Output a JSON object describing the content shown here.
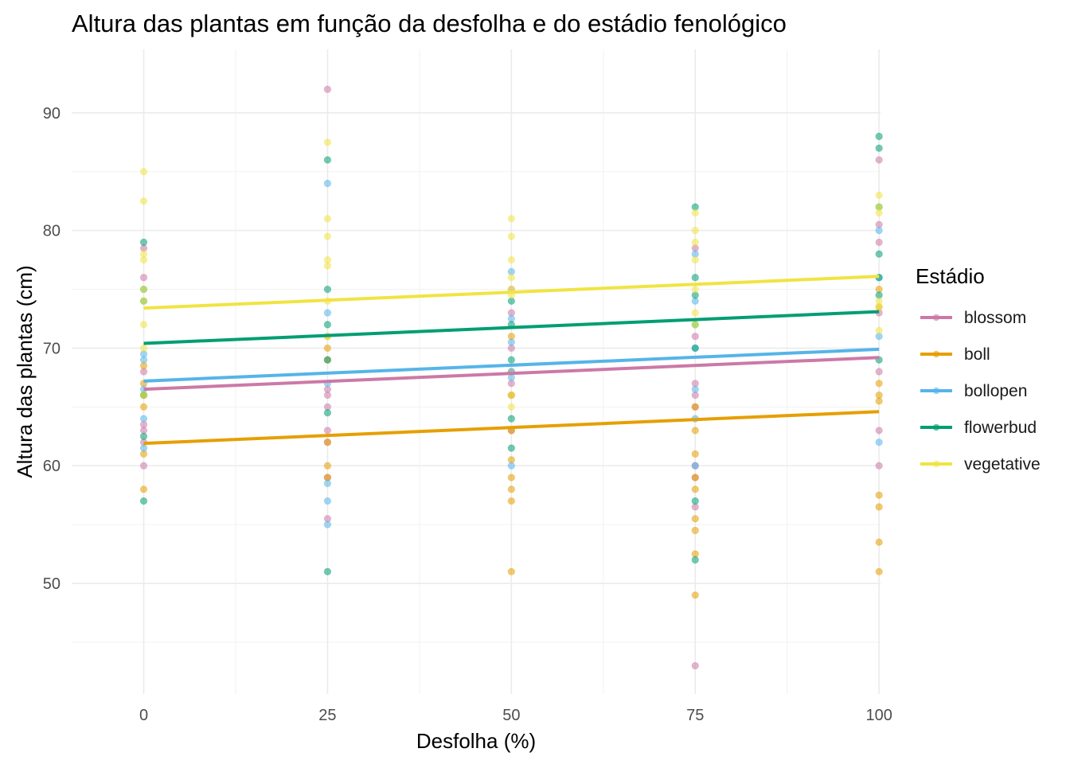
{
  "chart_data": {
    "type": "scatter",
    "title": "Altura das plantas em função da desfolha e do estádio fenológico",
    "xlabel": "Desfolha (%)",
    "ylabel": "Altura das plantas (cm)",
    "xlim": [
      -9.8,
      100.2
    ],
    "ylim": [
      40.6,
      95.4
    ],
    "x_ticks": [
      0,
      25,
      50,
      75,
      100
    ],
    "y_ticks": [
      50,
      60,
      70,
      80,
      90
    ],
    "grid": true,
    "legend_title": "Estádio",
    "legend_position": "right",
    "series": [
      {
        "name": "blossom",
        "color": "#CC79A7",
        "fit": {
          "intercept": 66.5,
          "slope": 0.027
        },
        "points": [
          [
            0,
            78.5
          ],
          [
            0,
            76
          ],
          [
            0,
            68
          ],
          [
            0,
            63.5
          ],
          [
            0,
            63
          ],
          [
            0,
            62
          ],
          [
            0,
            60
          ],
          [
            25,
            92
          ],
          [
            25,
            66.5
          ],
          [
            25,
            66
          ],
          [
            25,
            65
          ],
          [
            25,
            63
          ],
          [
            25,
            62
          ],
          [
            25,
            59
          ],
          [
            25,
            55.5
          ],
          [
            50,
            75
          ],
          [
            50,
            73
          ],
          [
            50,
            70
          ],
          [
            50,
            67
          ],
          [
            50,
            66
          ],
          [
            50,
            63
          ],
          [
            75,
            78.5
          ],
          [
            75,
            71
          ],
          [
            75,
            67
          ],
          [
            75,
            66
          ],
          [
            75,
            65
          ],
          [
            75,
            60
          ],
          [
            75,
            59
          ],
          [
            75,
            56.5
          ],
          [
            75,
            43
          ],
          [
            100,
            86
          ],
          [
            100,
            80.5
          ],
          [
            100,
            79
          ],
          [
            100,
            73
          ],
          [
            100,
            68
          ],
          [
            100,
            63
          ],
          [
            100,
            60
          ]
        ]
      },
      {
        "name": "boll",
        "color": "#E69F00",
        "fit": {
          "intercept": 61.9,
          "slope": 0.027
        },
        "points": [
          [
            0,
            68.5
          ],
          [
            0,
            67
          ],
          [
            0,
            66
          ],
          [
            0,
            65
          ],
          [
            0,
            61
          ],
          [
            0,
            58
          ],
          [
            25,
            71
          ],
          [
            25,
            70
          ],
          [
            25,
            69
          ],
          [
            25,
            62
          ],
          [
            25,
            60
          ],
          [
            25,
            59
          ],
          [
            50,
            71
          ],
          [
            50,
            68
          ],
          [
            50,
            66
          ],
          [
            50,
            63
          ],
          [
            50,
            60.5
          ],
          [
            50,
            59
          ],
          [
            50,
            58
          ],
          [
            50,
            57
          ],
          [
            50,
            51
          ],
          [
            75,
            65
          ],
          [
            75,
            63
          ],
          [
            75,
            61
          ],
          [
            75,
            59
          ],
          [
            75,
            58
          ],
          [
            75,
            55.5
          ],
          [
            75,
            54.5
          ],
          [
            75,
            52.5
          ],
          [
            75,
            49
          ],
          [
            100,
            75
          ],
          [
            100,
            73.5
          ],
          [
            100,
            67
          ],
          [
            100,
            66
          ],
          [
            100,
            65.5
          ],
          [
            100,
            57.5
          ],
          [
            100,
            56.5
          ],
          [
            100,
            53.5
          ],
          [
            100,
            51
          ]
        ]
      },
      {
        "name": "bollopen",
        "color": "#56B4E9",
        "fit": {
          "intercept": 67.2,
          "slope": 0.027
        },
        "points": [
          [
            0,
            69.5
          ],
          [
            0,
            69
          ],
          [
            0,
            66.5
          ],
          [
            0,
            64
          ],
          [
            0,
            61.5
          ],
          [
            25,
            84
          ],
          [
            25,
            73
          ],
          [
            25,
            67
          ],
          [
            25,
            58.5
          ],
          [
            25,
            57
          ],
          [
            25,
            55
          ],
          [
            50,
            76.5
          ],
          [
            50,
            72.5
          ],
          [
            50,
            70.5
          ],
          [
            50,
            68
          ],
          [
            50,
            67.5
          ],
          [
            50,
            60
          ],
          [
            75,
            78
          ],
          [
            75,
            74
          ],
          [
            75,
            70
          ],
          [
            75,
            66.5
          ],
          [
            75,
            64
          ],
          [
            75,
            60
          ],
          [
            100,
            80
          ],
          [
            100,
            76
          ],
          [
            100,
            71
          ],
          [
            100,
            62
          ]
        ]
      },
      {
        "name": "flowerbud",
        "color": "#009E73",
        "fit": {
          "intercept": 70.4,
          "slope": 0.027
        },
        "points": [
          [
            0,
            79
          ],
          [
            0,
            75
          ],
          [
            0,
            74
          ],
          [
            0,
            66
          ],
          [
            0,
            62.5
          ],
          [
            0,
            57
          ],
          [
            25,
            86
          ],
          [
            25,
            75
          ],
          [
            25,
            72
          ],
          [
            25,
            69
          ],
          [
            25,
            64.5
          ],
          [
            25,
            51
          ],
          [
            50,
            74
          ],
          [
            50,
            72
          ],
          [
            50,
            69
          ],
          [
            50,
            64
          ],
          [
            50,
            61.5
          ],
          [
            75,
            82
          ],
          [
            75,
            76
          ],
          [
            75,
            74.5
          ],
          [
            75,
            72
          ],
          [
            75,
            70
          ],
          [
            75,
            57
          ],
          [
            75,
            52
          ],
          [
            100,
            88
          ],
          [
            100,
            87
          ],
          [
            100,
            82
          ],
          [
            100,
            78
          ],
          [
            100,
            76
          ],
          [
            100,
            74.5
          ],
          [
            100,
            69
          ]
        ]
      },
      {
        "name": "vegetative",
        "color": "#F0E442",
        "fit": {
          "intercept": 73.4,
          "slope": 0.027
        },
        "points": [
          [
            0,
            85
          ],
          [
            0,
            82.5
          ],
          [
            0,
            78
          ],
          [
            0,
            77.5
          ],
          [
            0,
            75
          ],
          [
            0,
            74
          ],
          [
            0,
            72
          ],
          [
            0,
            70
          ],
          [
            0,
            66
          ],
          [
            25,
            87.5
          ],
          [
            25,
            81
          ],
          [
            25,
            79.5
          ],
          [
            25,
            77.5
          ],
          [
            25,
            77
          ],
          [
            25,
            74
          ],
          [
            25,
            71
          ],
          [
            50,
            81
          ],
          [
            50,
            79.5
          ],
          [
            50,
            77.5
          ],
          [
            50,
            76
          ],
          [
            50,
            75
          ],
          [
            50,
            74.5
          ],
          [
            50,
            66
          ],
          [
            50,
            65
          ],
          [
            75,
            81.5
          ],
          [
            75,
            80
          ],
          [
            75,
            79
          ],
          [
            75,
            77.5
          ],
          [
            75,
            75
          ],
          [
            75,
            73
          ],
          [
            75,
            72
          ],
          [
            100,
            83
          ],
          [
            100,
            82
          ],
          [
            100,
            81.5
          ],
          [
            100,
            74
          ],
          [
            100,
            73.5
          ],
          [
            100,
            71.5
          ]
        ]
      }
    ]
  }
}
